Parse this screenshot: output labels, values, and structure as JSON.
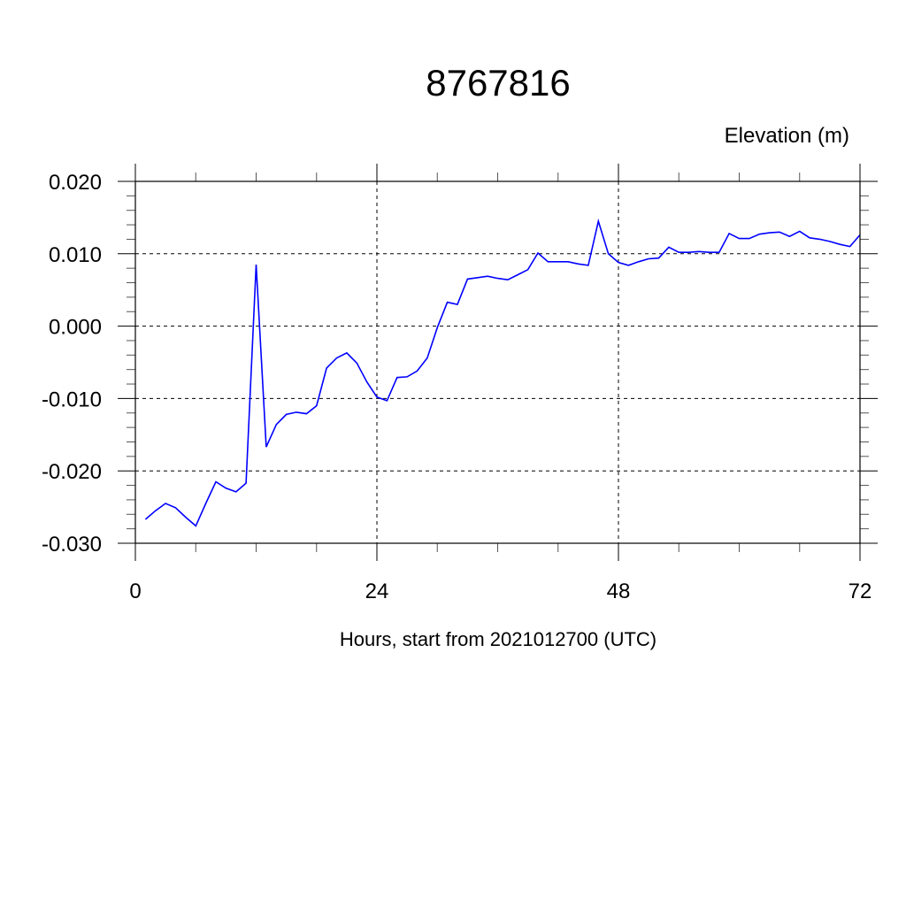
{
  "chart_data": {
    "type": "line",
    "title": "8767816",
    "ylabel": "Elevation (m)",
    "xlabel": "Hours, start from 2021012700 (UTC)",
    "xlim": [
      0,
      72
    ],
    "ylim": [
      -0.03,
      0.02
    ],
    "x_ticks": [
      0,
      24,
      48,
      72
    ],
    "x_tick_labels": [
      "0",
      "24",
      "48",
      "72"
    ],
    "y_ticks": [
      0.02,
      0.01,
      0.0,
      -0.01,
      -0.02,
      -0.03
    ],
    "y_tick_labels": [
      "0.020",
      "0.010",
      "0.000",
      "-0.010",
      "-0.020",
      "-0.030"
    ],
    "grid": true,
    "line_color": "#0000ff",
    "series": [
      {
        "x": [
          1,
          2,
          3,
          4,
          5,
          6,
          7,
          8,
          9,
          10,
          11,
          12,
          13,
          14,
          15,
          16,
          17,
          18,
          19,
          20,
          21,
          22,
          23,
          24,
          25,
          26,
          27,
          28,
          29,
          30,
          31,
          32,
          33,
          34,
          35,
          36,
          37,
          38,
          39,
          40,
          41,
          42,
          43,
          44,
          45,
          46,
          47,
          48,
          49,
          50,
          51,
          52,
          53,
          54,
          55,
          56,
          57,
          58,
          59,
          60,
          61,
          62,
          63,
          64,
          65,
          66,
          67,
          68,
          69,
          70,
          71,
          72
        ],
        "values": [
          -0.0267,
          -0.0255,
          -0.0245,
          -0.0251,
          -0.0264,
          -0.0276,
          -0.0245,
          -0.0215,
          -0.0224,
          -0.0229,
          -0.0217,
          0.0085,
          -0.0167,
          -0.0136,
          -0.0122,
          -0.0119,
          -0.0121,
          -0.011,
          -0.0058,
          -0.0044,
          -0.0037,
          -0.0051,
          -0.0077,
          -0.0098,
          -0.0103,
          -0.0071,
          -0.007,
          -0.0062,
          -0.0044,
          -0.0002,
          0.0033,
          0.003,
          0.0065,
          0.0067,
          0.0069,
          0.0066,
          0.0064,
          0.0071,
          0.0078,
          0.0101,
          0.0089,
          0.0089,
          0.0089,
          0.0086,
          0.0084,
          0.0145,
          0.01,
          0.0088,
          0.0084,
          0.0089,
          0.0093,
          0.0094,
          0.0109,
          0.0102,
          0.0102,
          0.0103,
          0.0102,
          0.0102,
          0.0128,
          0.0121,
          0.0121,
          0.0127,
          0.0129,
          0.013,
          0.0124,
          0.0131,
          0.0122,
          0.012,
          0.0117,
          0.0113,
          0.011,
          0.0126
        ]
      }
    ]
  }
}
